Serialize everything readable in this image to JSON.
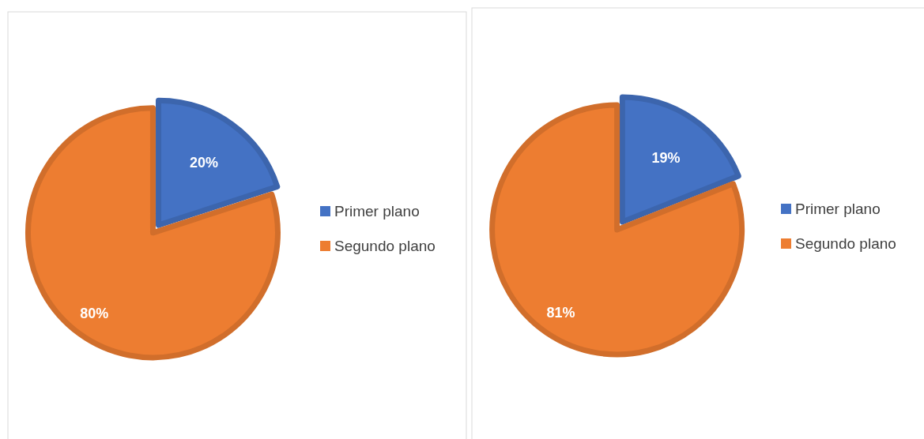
{
  "chart_data": [
    {
      "type": "pie",
      "categories": [
        "Primer plano",
        "Segundo plano"
      ],
      "values": [
        20,
        80
      ],
      "value_labels": [
        "20%",
        "80%"
      ],
      "colors": [
        "#4472c4",
        "#ed7d31"
      ],
      "legend": "right"
    },
    {
      "type": "pie",
      "categories": [
        "Primer plano",
        "Segundo plano"
      ],
      "values": [
        19,
        81
      ],
      "value_labels": [
        "19%",
        "81%"
      ],
      "colors": [
        "#4472c4",
        "#ed7d31"
      ],
      "legend": "right"
    }
  ]
}
